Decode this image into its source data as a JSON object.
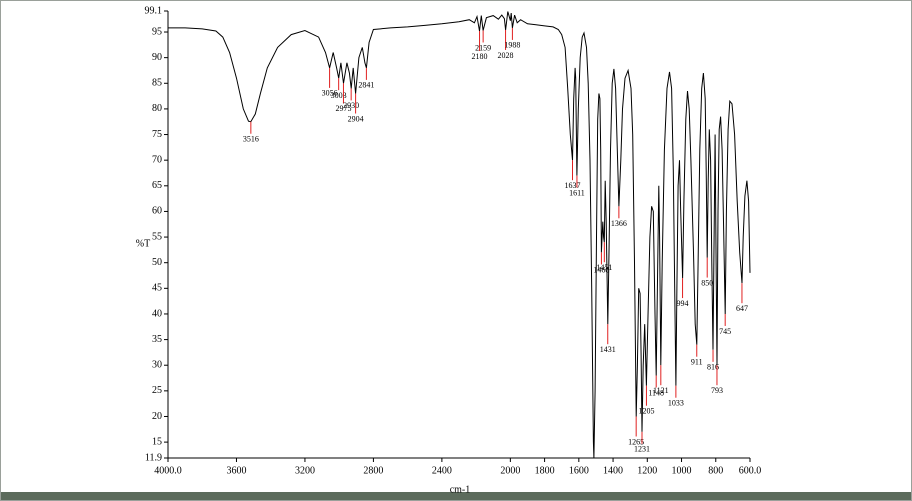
{
  "chart_data": {
    "type": "line",
    "y_label": "%T",
    "x_label": "cm-1",
    "color": "#000000",
    "annotation_color": "#e02020",
    "xlim": [
      4000,
      600
    ],
    "ylim": [
      11.9,
      99.1
    ],
    "xticks": [
      {
        "value": 4000,
        "label": "4000.0"
      },
      3600,
      3200,
      2800,
      2400,
      2000,
      1800,
      1600,
      1400,
      1200,
      1000,
      800,
      {
        "value": 600,
        "label": "600.0"
      }
    ],
    "yticks": [
      99.1,
      95,
      90,
      85,
      80,
      75,
      70,
      65,
      60,
      55,
      50,
      45,
      40,
      35,
      30,
      25,
      20,
      15,
      11.9
    ],
    "x": [
      4000,
      3900,
      3800,
      3720,
      3680,
      3640,
      3600,
      3560,
      3530,
      3516,
      3490,
      3460,
      3420,
      3360,
      3280,
      3200,
      3120,
      3080,
      3056,
      3035,
      3015,
      3003,
      2990,
      2975,
      2955,
      2940,
      2930,
      2918,
      2904,
      2885,
      2865,
      2850,
      2841,
      2825,
      2800,
      2700,
      2600,
      2500,
      2400,
      2300,
      2240,
      2210,
      2195,
      2180,
      2170,
      2159,
      2140,
      2100,
      2070,
      2050,
      2035,
      2028,
      2015,
      2000,
      1995,
      1988,
      1975,
      1960,
      1940,
      1900,
      1850,
      1800,
      1750,
      1720,
      1700,
      1680,
      1665,
      1650,
      1637,
      1630,
      1622,
      1618,
      1611,
      1603,
      1592,
      1580,
      1570,
      1555,
      1545,
      1535,
      1525,
      1515,
      1512,
      1505,
      1497,
      1490,
      1483,
      1477,
      1472,
      1468,
      1460,
      1455,
      1451,
      1446,
      1440,
      1431,
      1424,
      1415,
      1405,
      1395,
      1385,
      1375,
      1366,
      1355,
      1345,
      1330,
      1312,
      1295,
      1285,
      1275,
      1265,
      1258,
      1250,
      1242,
      1236,
      1231,
      1224,
      1215,
      1205,
      1197,
      1185,
      1175,
      1165,
      1155,
      1148,
      1140,
      1133,
      1128,
      1121,
      1113,
      1100,
      1085,
      1070,
      1058,
      1048,
      1040,
      1033,
      1027,
      1020,
      1012,
      1005,
      994,
      986,
      975,
      965,
      955,
      945,
      930,
      920,
      911,
      903,
      893,
      882,
      872,
      862,
      856,
      850,
      844,
      838,
      830,
      823,
      816,
      810,
      804,
      798,
      793,
      787,
      780,
      772,
      763,
      755,
      745,
      738,
      728,
      718,
      705,
      690,
      675,
      660,
      647,
      640,
      630,
      618,
      608,
      600
    ],
    "values": [
      95.8,
      95.8,
      95.6,
      95.2,
      94,
      91,
      86,
      80,
      77.6,
      77.5,
      79,
      83,
      88,
      92,
      94.5,
      95.3,
      94,
      91,
      88,
      91,
      88,
      86,
      89,
      85,
      89,
      87,
      84,
      88,
      83,
      90,
      92,
      89,
      88,
      93,
      95.5,
      95.8,
      96,
      96.3,
      96.6,
      97,
      97.4,
      96.8,
      98,
      95.2,
      98.2,
      95.3,
      97.8,
      98.2,
      97.5,
      98.3,
      97.6,
      95.4,
      99,
      97.2,
      98.7,
      95.8,
      98.3,
      96.8,
      97.4,
      96.6,
      96.4,
      96.2,
      96,
      95.5,
      94.5,
      92,
      84,
      75,
      70,
      82,
      88,
      86,
      67,
      80,
      90,
      94,
      94.8,
      92,
      85,
      70,
      45,
      15,
      11.9,
      25,
      55,
      78,
      83,
      82,
      72,
      52,
      58,
      55,
      54,
      66,
      58,
      38,
      52,
      72,
      85,
      87.8,
      84,
      72,
      61,
      70,
      80,
      86,
      87.5,
      84,
      75,
      50,
      20,
      30,
      45,
      44,
      32,
      17,
      30,
      38,
      26,
      38,
      55,
      61,
      60,
      40,
      28,
      48,
      65,
      55,
      30,
      50,
      72,
      84,
      87.2,
      84,
      68,
      45,
      26,
      45,
      65,
      70,
      60,
      47,
      62,
      78,
      83.5,
      80,
      70,
      52,
      38,
      34,
      50,
      72,
      84,
      87,
      82,
      68,
      51,
      66,
      76,
      70,
      50,
      33,
      55,
      75,
      50,
      30,
      60,
      76,
      78.5,
      72,
      58,
      40,
      60,
      76,
      81.5,
      81,
      75,
      62,
      52,
      46,
      55,
      63,
      66,
      62,
      48
    ],
    "annotations": [
      {
        "x": 3516,
        "y": 77.5
      },
      {
        "x": 3056,
        "y": 88
      },
      {
        "x": 3003,
        "y": 86
      },
      {
        "x": 2975,
        "y": 85
      },
      {
        "x": 2930,
        "y": 84
      },
      {
        "x": 2904,
        "y": 83
      },
      {
        "x": 2841,
        "y": 88
      },
      {
        "x": 2180,
        "y": 95.2
      },
      {
        "x": 2159,
        "y": 95.3
      },
      {
        "x": 2028,
        "y": 95.4
      },
      {
        "x": 1988,
        "y": 95.8
      },
      {
        "x": 1637,
        "y": 70
      },
      {
        "x": 1611,
        "y": 67
      },
      {
        "x": 1451,
        "y": 54
      },
      {
        "x": 1468,
        "y": 52
      },
      {
        "x": 1431,
        "y": 38
      },
      {
        "x": 1366,
        "y": 61
      },
      {
        "x": 1265,
        "y": 20
      },
      {
        "x": 1231,
        "y": 17
      },
      {
        "x": 1205,
        "y": 26
      },
      {
        "x": 1148,
        "y": 28
      },
      {
        "x": 1121,
        "y": 30
      },
      {
        "x": 1033,
        "y": 26
      },
      {
        "x": 994,
        "y": 47
      },
      {
        "x": 911,
        "y": 34
      },
      {
        "x": 850,
        "y": 51
      },
      {
        "x": 816,
        "y": 33
      },
      {
        "x": 793,
        "y": 30
      },
      {
        "x": 745,
        "y": 40
      },
      {
        "x": 647,
        "y": 46
      }
    ]
  }
}
